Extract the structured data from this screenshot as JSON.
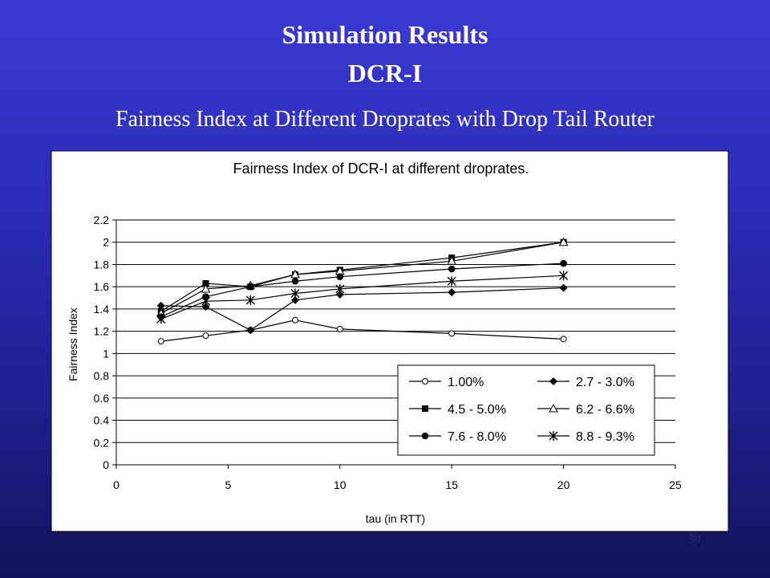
{
  "slide": {
    "title_line1": "Simulation Results",
    "title_line2": "DCR-I",
    "subtitle": "Fairness Index at Different Droprates with Drop Tail Router",
    "page_number": "30"
  },
  "chart_data": {
    "type": "line",
    "title": "Fairness Index of DCR-I at different droprates.",
    "xlabel": "tau (in RTT)",
    "ylabel": "Fairness Index",
    "xlim": [
      0,
      25
    ],
    "ylim": [
      0,
      2.2
    ],
    "xticks": [
      "0",
      "5",
      "10",
      "15",
      "20",
      "25"
    ],
    "yticks": [
      "0",
      "0.2",
      "0.4",
      "0.6",
      "0.8",
      "1",
      "1.2",
      "1.4",
      "1.6",
      "1.8",
      "2",
      "2.2"
    ],
    "grid": "horizontal",
    "legend_position": "bottom-right",
    "x": [
      2,
      4,
      6,
      8,
      10,
      15,
      20
    ],
    "series": [
      {
        "name": "1.00%",
        "marker": "circle-open",
        "values": [
          1.11,
          1.16,
          1.21,
          1.3,
          1.22,
          1.18,
          1.13
        ]
      },
      {
        "name": "2.7 - 3.0%",
        "marker": "diamond",
        "values": [
          1.43,
          1.42,
          1.21,
          1.48,
          1.53,
          1.55,
          1.59
        ]
      },
      {
        "name": "4.5 - 5.0%",
        "marker": "square",
        "values": [
          1.38,
          1.63,
          1.6,
          1.71,
          1.75,
          1.86,
          2.0
        ]
      },
      {
        "name": "6.2 - 6.6%",
        "marker": "triangle-open",
        "values": [
          1.36,
          1.58,
          1.61,
          1.71,
          1.74,
          1.83,
          2.0
        ]
      },
      {
        "name": "7.6 - 8.0%",
        "marker": "circle",
        "values": [
          1.33,
          1.51,
          1.6,
          1.65,
          1.69,
          1.76,
          1.81
        ]
      },
      {
        "name": "8.8 - 9.3%",
        "marker": "asterisk",
        "values": [
          1.31,
          1.47,
          1.48,
          1.54,
          1.58,
          1.65,
          1.7
        ]
      }
    ],
    "colors": {
      "plot_bg": "#ffffff",
      "line": "#000000",
      "grid": "#000000"
    }
  }
}
